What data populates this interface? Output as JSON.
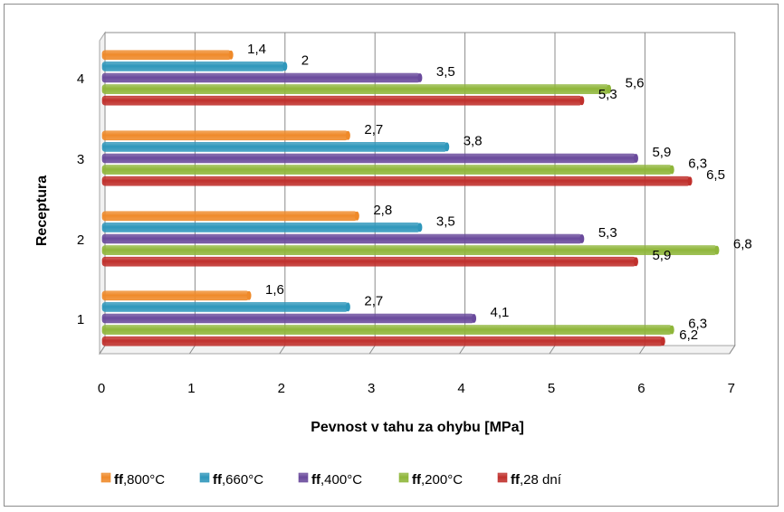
{
  "chart_data": {
    "type": "bar",
    "orientation": "horizontal",
    "xlabel": "Pevnost v tahu za ohybu [MPa]",
    "ylabel": "Receptura",
    "xlim": [
      0,
      7
    ],
    "xticks": [
      "0",
      "1",
      "2",
      "3",
      "4",
      "5",
      "6",
      "7"
    ],
    "grid": true,
    "legend_position": "bottom",
    "categories": [
      "1",
      "2",
      "3",
      "4"
    ],
    "series": [
      {
        "name_bold": "ff",
        "name_rest": ",28 dní",
        "color": "#c0302c",
        "values": [
          6.2,
          5.9,
          6.5,
          5.3
        ],
        "labels": [
          "6,2",
          "5,9",
          "6,5",
          "5,3"
        ]
      },
      {
        "name_bold": "ff",
        "name_rest": ",200°C",
        "color": "#8fb63a",
        "values": [
          6.3,
          6.8,
          6.3,
          5.6
        ],
        "labels": [
          "6,3",
          "6,8",
          "6,3",
          "5,6"
        ]
      },
      {
        "name_bold": "ff",
        "name_rest": ",400°C",
        "color": "#6a4a9c",
        "values": [
          4.1,
          5.3,
          5.9,
          3.5
        ],
        "labels": [
          "4,1",
          "5,3",
          "5,9",
          "3,5"
        ]
      },
      {
        "name_bold": "ff",
        "name_rest": ",660°C",
        "color": "#2f97bb",
        "values": [
          2.7,
          3.5,
          3.8,
          2.0
        ],
        "labels": [
          "2,7",
          "3,5",
          "3,8",
          "2"
        ]
      },
      {
        "name_bold": "ff",
        "name_rest": ",800°C",
        "color": "#ef8a2a",
        "values": [
          1.6,
          2.8,
          2.7,
          1.4
        ],
        "labels": [
          "1,6",
          "2,8",
          "2,7",
          "1,4"
        ]
      }
    ]
  }
}
